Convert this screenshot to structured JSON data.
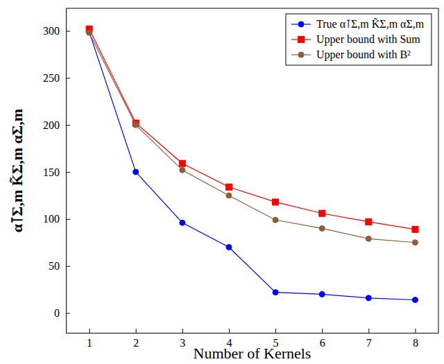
{
  "chart_data": {
    "type": "line",
    "x_label": "Number of Kernels",
    "y_label": "α⊺Σ,m K̃Σ,m αΣ,m",
    "x": [
      1,
      2,
      3,
      4,
      5,
      6,
      7,
      8
    ],
    "xlim": [
      0.5,
      8.5
    ],
    "xticks": [
      1,
      2,
      3,
      4,
      5,
      6,
      7,
      8
    ],
    "ylim": [
      -21,
      324
    ],
    "yticks": [
      0,
      50,
      100,
      150,
      200,
      250,
      300
    ],
    "grid": false,
    "legend": "top-right",
    "series": [
      {
        "name": "True α⊺Σ,m K̃Σ,m αΣ,m",
        "color": "#0000ff",
        "marker": "circle",
        "values": [
          299,
          150,
          96,
          70,
          22,
          20,
          16,
          14
        ]
      },
      {
        "name": "Upper bound with Sum",
        "color": "#ff0000",
        "marker": "square",
        "values": [
          302,
          202,
          159,
          134,
          118,
          106,
          97,
          89
        ]
      },
      {
        "name": "Upper bound with B²",
        "color": "#8c5f3c",
        "marker": "circle",
        "values": [
          298,
          200,
          152,
          125,
          99,
          90,
          79,
          75
        ]
      }
    ]
  }
}
